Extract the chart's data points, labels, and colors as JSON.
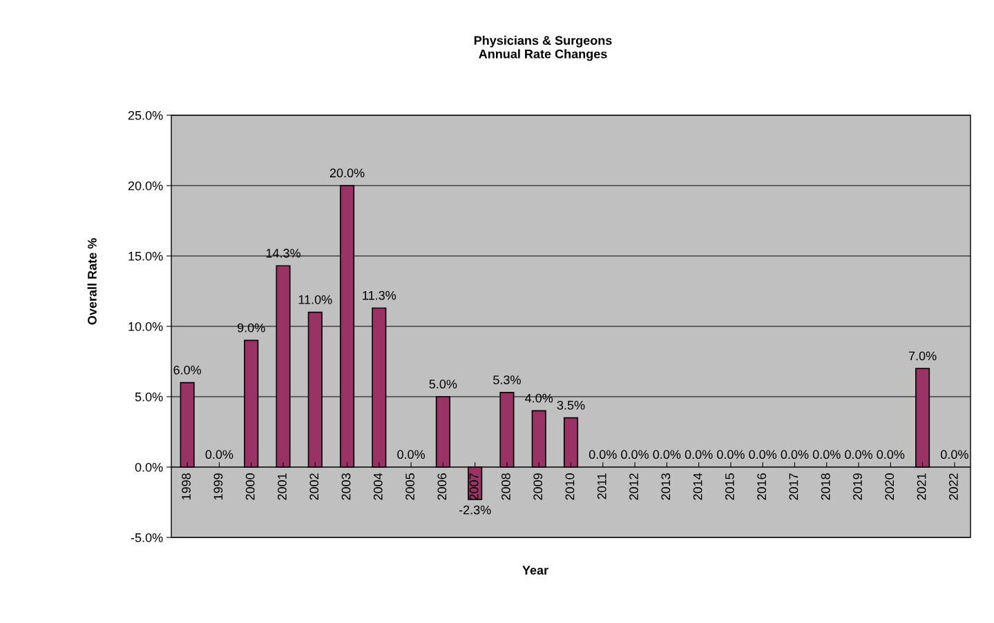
{
  "chart_data": {
    "type": "bar",
    "title": "Physicians & Surgeons\nAnnual Rate Changes",
    "xlabel": "Year",
    "ylabel": "Overall Rate %",
    "categories": [
      "1998",
      "1999",
      "2000",
      "2001",
      "2002",
      "2003",
      "2004",
      "2005",
      "2006",
      "2007",
      "2008",
      "2009",
      "2010",
      "2011",
      "2012",
      "2013",
      "2014",
      "2015",
      "2016",
      "2017",
      "2018",
      "2019",
      "2020",
      "2021",
      "2022"
    ],
    "values": [
      6.0,
      0,
      9.0,
      14.3,
      11.0,
      20.0,
      11.3,
      0,
      5.0,
      -2.3,
      5.3,
      4.0,
      3.5,
      0,
      0,
      0,
      0,
      0,
      0,
      0,
      0,
      0,
      0,
      7.0,
      0
    ],
    "value_labels": [
      "6.0%",
      "0.0%",
      "9.0%",
      "14.3%",
      "11.0%",
      "20.0%",
      "11.3%",
      "0.0%",
      "5.0%",
      "-2.3%",
      "5.3%",
      "4.0%",
      "3.5%",
      "0.0%",
      "0.0%",
      "0.0%",
      "0.0%",
      "0.0%",
      "0.0%",
      "0.0%",
      "0.0%",
      "0.0%",
      "0.0%",
      "7.0%",
      "0.0%"
    ],
    "color": "#993366",
    "ylim": [
      -5,
      25
    ],
    "yticks": [
      {
        "value": -5,
        "label": "-5.0%"
      },
      {
        "value": 0,
        "label": "0.0%"
      },
      {
        "value": 5,
        "label": "5.0%"
      },
      {
        "value": 10,
        "label": "10.0%"
      },
      {
        "value": 15,
        "label": "15.0%"
      },
      {
        "value": 20,
        "label": "20.0%"
      },
      {
        "value": 25,
        "label": "25.0%"
      }
    ],
    "grid": "y"
  }
}
